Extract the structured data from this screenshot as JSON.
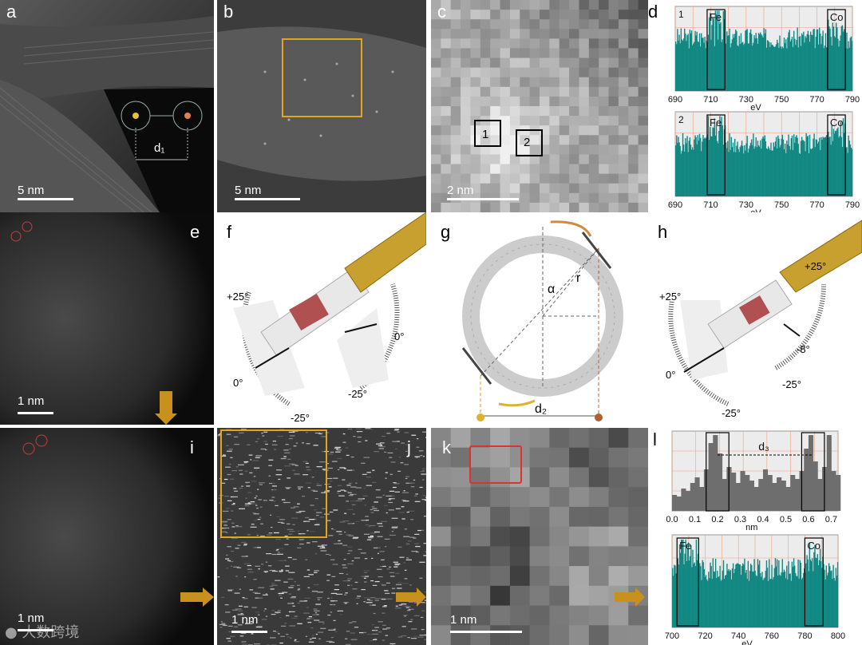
{
  "panels": {
    "a": {
      "label": "a",
      "scale": "5 nm",
      "distance": "d₁"
    },
    "b": {
      "label": "b",
      "scale": "5 nm"
    },
    "c": {
      "label": "c",
      "scale": "2 nm",
      "box1": "1",
      "box2": "2"
    },
    "d": {
      "label": "d"
    },
    "e": {
      "label": "e",
      "scale": "1 nm"
    },
    "f": {
      "label": "f",
      "angles": [
        "+25°",
        "0°",
        "0°",
        "-25°",
        "-25°"
      ]
    },
    "g": {
      "label": "g",
      "alpha": "α",
      "r": "r",
      "distance": "d₂"
    },
    "h": {
      "label": "h",
      "angles": [
        "+25°",
        "+25°",
        "0°",
        "-25°",
        "-8°",
        "-25°"
      ]
    },
    "i": {
      "label": "i",
      "scale": "1 nm"
    },
    "j": {
      "label": "j",
      "scale": "1 nm"
    },
    "k": {
      "label": "k",
      "scale": "1 nm"
    },
    "l": {
      "label": "l"
    }
  },
  "chart_data": [
    {
      "type": "bar",
      "panel": "d1",
      "spectrum_label": "1",
      "element_labels": [
        "Fe",
        "Co"
      ],
      "x_ticks": [
        "690",
        "710",
        "730",
        "750",
        "770",
        "790"
      ],
      "xlabel": "eV",
      "xlim": [
        690,
        790
      ],
      "edges_eV": [
        [
          708,
          718
        ],
        [
          776,
          786
        ]
      ]
    },
    {
      "type": "bar",
      "panel": "d2",
      "spectrum_label": "2",
      "element_labels": [
        "Fe",
        "Co"
      ],
      "x_ticks": [
        "690",
        "710",
        "730",
        "750",
        "770",
        "790"
      ],
      "xlabel": "eV",
      "xlim": [
        690,
        790
      ],
      "edges_eV": [
        [
          708,
          718
        ],
        [
          776,
          786
        ]
      ]
    },
    {
      "type": "bar",
      "panel": "l-top",
      "annotation": "d₃",
      "x_ticks": [
        "0.0",
        "0.1",
        "0.2",
        "0.3",
        "0.4",
        "0.5",
        "0.6",
        "0.7"
      ],
      "xlabel": "nm",
      "xlim": [
        0.0,
        0.73
      ],
      "x": [
        0.0,
        0.02,
        0.04,
        0.06,
        0.08,
        0.1,
        0.12,
        0.14,
        0.16,
        0.18,
        0.2,
        0.22,
        0.24,
        0.26,
        0.28,
        0.3,
        0.32,
        0.34,
        0.36,
        0.38,
        0.4,
        0.42,
        0.44,
        0.46,
        0.48,
        0.5,
        0.52,
        0.54,
        0.56,
        0.58,
        0.6,
        0.62,
        0.64,
        0.66,
        0.68,
        0.7,
        0.72
      ],
      "values": [
        0.2,
        0.18,
        0.28,
        0.25,
        0.35,
        0.42,
        0.3,
        0.52,
        0.85,
        0.95,
        0.72,
        0.4,
        0.55,
        0.48,
        0.35,
        0.5,
        0.45,
        0.38,
        0.3,
        0.4,
        0.52,
        0.45,
        0.35,
        0.42,
        0.38,
        0.3,
        0.45,
        0.4,
        0.5,
        0.78,
        0.95,
        0.62,
        0.4,
        0.55,
        0.95,
        0.5,
        0.45
      ]
    },
    {
      "type": "bar",
      "panel": "l-bottom",
      "element_labels": [
        "Fe",
        "Co"
      ],
      "x_ticks": [
        "700",
        "720",
        "740",
        "760",
        "780",
        "800"
      ],
      "xlabel": "eV",
      "xlim": [
        700,
        800
      ],
      "edges_eV": [
        [
          703,
          716
        ],
        [
          780,
          791
        ]
      ]
    }
  ]
}
